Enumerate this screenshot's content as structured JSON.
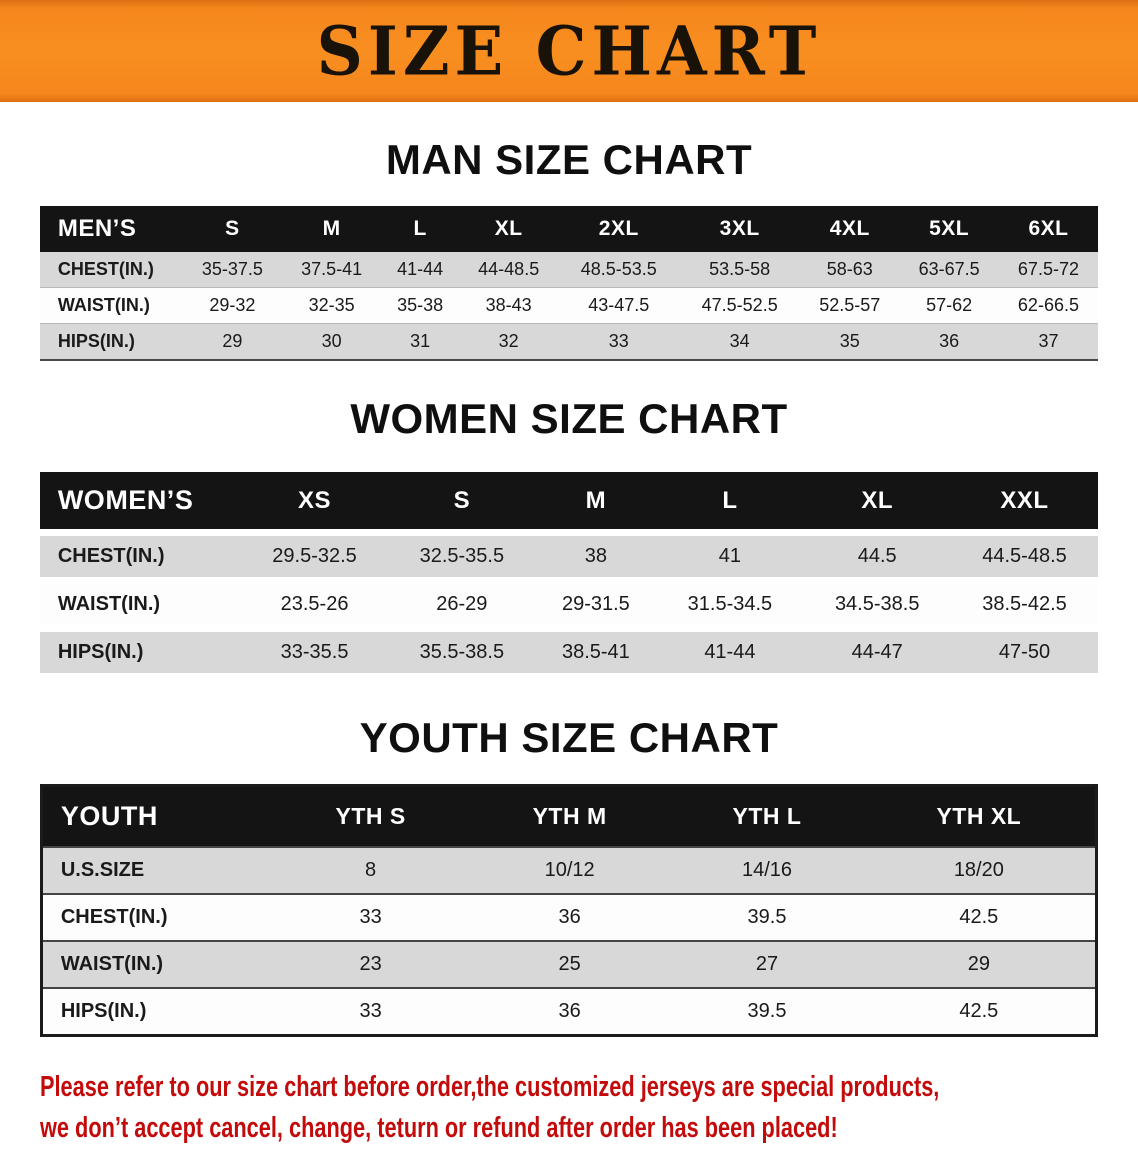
{
  "banner": {
    "title": "SIZE CHART"
  },
  "sections": [
    {
      "id": "men",
      "heading": "MAN SIZE CHART",
      "table": {
        "type": "table",
        "header": [
          "MEN’S",
          "S",
          "M",
          "L",
          "XL",
          "2XL",
          "3XL",
          "4XL",
          "5XL",
          "6XL"
        ],
        "rows": [
          [
            "CHEST(IN.)",
            "35-37.5",
            "37.5-41",
            "41-44",
            "44-48.5",
            "48.5-53.5",
            "53.5-58",
            "58-63",
            "63-67.5",
            "67.5-72"
          ],
          [
            "WAIST(IN.)",
            "29-32",
            "32-35",
            "35-38",
            "38-43",
            "43-47.5",
            "47.5-52.5",
            "52.5-57",
            "57-62",
            "62-66.5"
          ],
          [
            "HIPS(IN.)",
            "29",
            "30",
            "31",
            "32",
            "33",
            "34",
            "35",
            "36",
            "37"
          ]
        ]
      }
    },
    {
      "id": "women",
      "heading": "WOMEN SIZE CHART",
      "table": {
        "type": "table",
        "header": [
          "WOMEN’S",
          "XS",
          "S",
          "M",
          "L",
          "XL",
          "XXL"
        ],
        "rows": [
          [
            "CHEST(IN.)",
            "29.5-32.5",
            "32.5-35.5",
            "38",
            "41",
            "44.5",
            "44.5-48.5"
          ],
          [
            "WAIST(IN.)",
            "23.5-26",
            "26-29",
            "29-31.5",
            "31.5-34.5",
            "34.5-38.5",
            "38.5-42.5"
          ],
          [
            "HIPS(IN.)",
            "33-35.5",
            "35.5-38.5",
            "38.5-41",
            "41-44",
            "44-47",
            "47-50"
          ]
        ]
      }
    },
    {
      "id": "youth",
      "heading": "YOUTH SIZE CHART",
      "table": {
        "type": "table",
        "header": [
          "YOUTH",
          "YTH S",
          "YTH M",
          "YTH L",
          "YTH XL"
        ],
        "rows": [
          [
            "U.S.SIZE",
            "8",
            "10/12",
            "14/16",
            "18/20"
          ],
          [
            "CHEST(IN.)",
            "33",
            "36",
            "39.5",
            "42.5"
          ],
          [
            "WAIST(IN.)",
            "23",
            "25",
            "27",
            "29"
          ],
          [
            "HIPS(IN.)",
            "33",
            "36",
            "39.5",
            "42.5"
          ]
        ]
      }
    }
  ],
  "footer": {
    "lines": [
      "Please refer to our size chart before order,the customized jerseys are special products,",
      "we don’t accept cancel, change, teturn or refund after order has been placed!"
    ]
  },
  "colors": {
    "banner_orange": "#F5861D",
    "header_black": "#141414",
    "row_gray": "#D8D8D8",
    "note_red": "#C40B0B"
  }
}
